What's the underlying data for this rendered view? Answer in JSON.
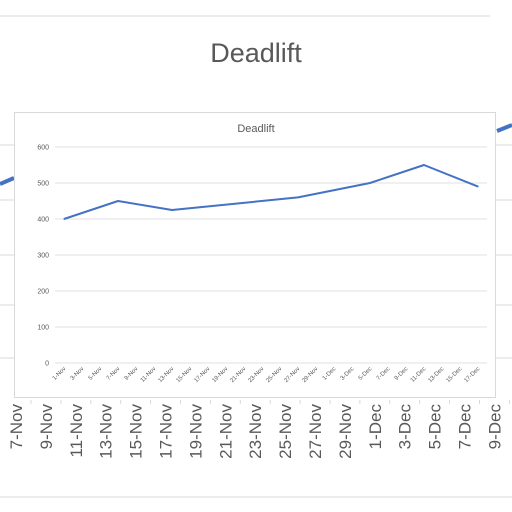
{
  "background_chart": {
    "title": "Deadlift",
    "visible_x_ticks": [
      "7-Nov",
      "9-Nov",
      "11-Nov",
      "13-Nov",
      "15-Nov",
      "17-Nov",
      "19-Nov",
      "21-Nov",
      "23-Nov",
      "25-Nov",
      "27-Nov",
      "29-Nov",
      "1-Dec",
      "3-Dec",
      "5-Dec",
      "7-Dec",
      "9-Dec"
    ],
    "line_color": "#4472c4"
  },
  "chart_data": {
    "type": "line",
    "title": "Deadlift",
    "xlabel": "",
    "ylabel": "",
    "ylim": [
      0,
      600
    ],
    "yticks": [
      0,
      100,
      200,
      300,
      400,
      500,
      600
    ],
    "x_tick_labels": [
      "1-Nov",
      "3-Nov",
      "5-Nov",
      "7-Nov",
      "9-Nov",
      "11-Nov",
      "13-Nov",
      "15-Nov",
      "17-Nov",
      "19-Nov",
      "21-Nov",
      "23-Nov",
      "25-Nov",
      "27-Nov",
      "29-Nov",
      "1-Dec",
      "3-Dec",
      "5-Dec",
      "7-Dec",
      "9-Dec",
      "11-Dec",
      "13-Dec",
      "15-Dec",
      "17-Dec"
    ],
    "x": [
      "1-Nov",
      "7-Nov",
      "13-Nov",
      "27-Nov",
      "5-Dec",
      "11-Dec",
      "17-Dec"
    ],
    "values": [
      400,
      450,
      425,
      460,
      500,
      550,
      490
    ],
    "grid": true,
    "legend": "none",
    "line_color": "#4472c4"
  }
}
